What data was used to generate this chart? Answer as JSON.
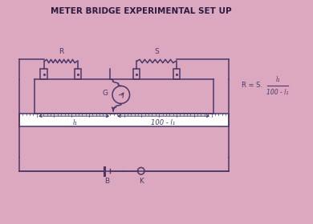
{
  "title": "METER BRIDGE EXPERIMENTAL SET UP",
  "bg_color": "#dba8c0",
  "line_color": "#4a3868",
  "label_R": "R",
  "label_S": "S",
  "label_G": "G",
  "label_B": "B",
  "label_K": "K",
  "label_l1": "l₁",
  "label_l2": "100 - l₁",
  "formula_main": "R = S.",
  "formula_num": "l₁",
  "formula_den": "100 - l₁"
}
